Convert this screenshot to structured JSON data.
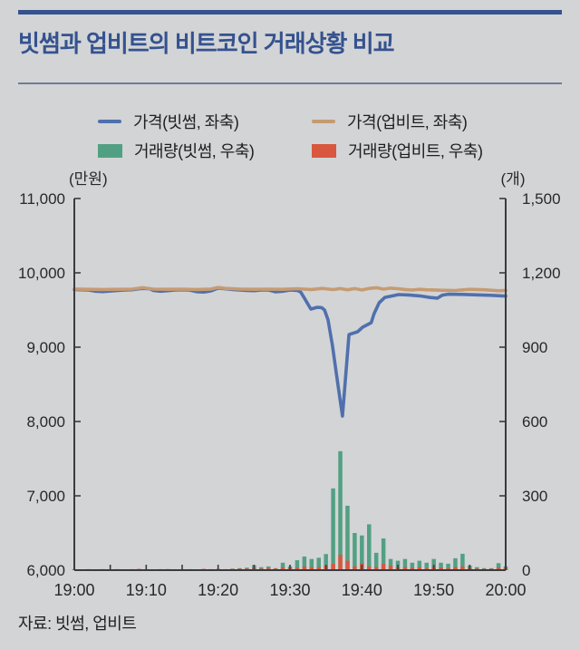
{
  "page": {
    "title": "빗썸과 업비트의 비트코인 거래상황 비교",
    "source": "자료: 빗썸, 업비트",
    "background_color": "#d2d4d6",
    "accent_color": "#35528f",
    "rule_color": "#6f7c99"
  },
  "chart_data": {
    "type": "mixed",
    "title": "빗썸과 업비트의 비트코인 거래상황 비교",
    "grid": false,
    "legend_position": "top",
    "x": {
      "range_minutes": [
        0,
        60
      ],
      "tick_labels": [
        "19:00",
        "19:10",
        "19:20",
        "19:30",
        "19:40",
        "19:50",
        "20:00"
      ],
      "minor_tick_every_min": 5
    },
    "left_axis": {
      "unit": "(만원)",
      "min": 6000,
      "max": 11000,
      "tick_values": [
        6000,
        7000,
        8000,
        9000,
        10000,
        11000
      ],
      "ticks": [
        "6,000",
        "7,000",
        "8,000",
        "9,000",
        "10,000",
        "11,000"
      ]
    },
    "right_axis": {
      "unit": "(개)",
      "min": 0,
      "max": 1500,
      "tick_values": [
        0,
        300,
        600,
        900,
        1200,
        1500
      ],
      "ticks": [
        "0",
        "300",
        "600",
        "900",
        "1,200",
        "1,500"
      ]
    },
    "series": [
      {
        "id": "bithumb-price",
        "name": "가격(빗썸, 좌축)",
        "type": "line",
        "axis": "left",
        "color": "#5070ad",
        "points": [
          [
            0,
            9775
          ],
          [
            1,
            9772
          ],
          [
            2,
            9768
          ],
          [
            3,
            9752
          ],
          [
            4,
            9748
          ],
          [
            5,
            9755
          ],
          [
            6,
            9762
          ],
          [
            7,
            9768
          ],
          [
            8,
            9772
          ],
          [
            9,
            9785
          ],
          [
            9.5,
            9790
          ],
          [
            10.5,
            9785
          ],
          [
            11,
            9762
          ],
          [
            12,
            9752
          ],
          [
            13,
            9760
          ],
          [
            14,
            9770
          ],
          [
            15,
            9772
          ],
          [
            16,
            9768
          ],
          [
            17,
            9746
          ],
          [
            18,
            9742
          ],
          [
            19,
            9756
          ],
          [
            20,
            9795
          ],
          [
            21,
            9785
          ],
          [
            22,
            9776
          ],
          [
            23,
            9770
          ],
          [
            24,
            9764
          ],
          [
            25,
            9760
          ],
          [
            26,
            9768
          ],
          [
            27,
            9770
          ],
          [
            28,
            9744
          ],
          [
            29,
            9752
          ],
          [
            30,
            9768
          ],
          [
            31,
            9764
          ],
          [
            31.5,
            9740
          ],
          [
            32,
            9660
          ],
          [
            32.9,
            9512
          ],
          [
            33.8,
            9537
          ],
          [
            34.4,
            9532
          ],
          [
            34.8,
            9500
          ],
          [
            35.3,
            9366
          ],
          [
            35.9,
            9024
          ],
          [
            36.6,
            8537
          ],
          [
            37.3,
            8073
          ],
          [
            38.2,
            9170
          ],
          [
            39.4,
            9207
          ],
          [
            40.1,
            9268
          ],
          [
            41.3,
            9329
          ],
          [
            41.7,
            9451
          ],
          [
            42.4,
            9597
          ],
          [
            43.2,
            9670
          ],
          [
            45.1,
            9707
          ],
          [
            46.5,
            9702
          ],
          [
            48,
            9690
          ],
          [
            49.5,
            9668
          ],
          [
            50.5,
            9660
          ],
          [
            51.2,
            9700
          ],
          [
            52,
            9712
          ],
          [
            54,
            9710
          ],
          [
            56,
            9704
          ],
          [
            58,
            9698
          ],
          [
            59.5,
            9690
          ],
          [
            60,
            9688
          ]
        ]
      },
      {
        "id": "upbit-price",
        "name": "가격(업비트, 좌축)",
        "type": "line",
        "axis": "left",
        "color": "#c69b72",
        "points": [
          [
            0,
            9782
          ],
          [
            2,
            9778
          ],
          [
            4,
            9775
          ],
          [
            6,
            9778
          ],
          [
            8,
            9780
          ],
          [
            9.5,
            9800
          ],
          [
            11,
            9780
          ],
          [
            13,
            9778
          ],
          [
            15,
            9780
          ],
          [
            17,
            9776
          ],
          [
            19,
            9782
          ],
          [
            20,
            9804
          ],
          [
            21,
            9790
          ],
          [
            23,
            9782
          ],
          [
            25,
            9778
          ],
          [
            27,
            9780
          ],
          [
            29,
            9778
          ],
          [
            31,
            9786
          ],
          [
            33,
            9776
          ],
          [
            34.5,
            9790
          ],
          [
            36,
            9774
          ],
          [
            37,
            9788
          ],
          [
            38,
            9772
          ],
          [
            39,
            9788
          ],
          [
            40,
            9770
          ],
          [
            41,
            9790
          ],
          [
            42,
            9800
          ],
          [
            43,
            9780
          ],
          [
            44,
            9794
          ],
          [
            45,
            9786
          ],
          [
            46,
            9776
          ],
          [
            47,
            9768
          ],
          [
            48,
            9778
          ],
          [
            49,
            9772
          ],
          [
            51,
            9766
          ],
          [
            53,
            9762
          ],
          [
            55,
            9778
          ],
          [
            57,
            9772
          ],
          [
            59,
            9758
          ],
          [
            60,
            9764
          ]
        ]
      },
      {
        "id": "bithumb-volume",
        "name": "거래량(빗썸, 우축)",
        "type": "bar",
        "axis": "right",
        "color": "#52a083",
        "values": [
          2,
          1,
          2,
          1,
          3,
          2,
          1,
          2,
          3,
          4,
          2,
          1,
          2,
          4,
          2,
          1,
          3,
          2,
          4,
          3,
          4,
          3,
          6,
          8,
          10,
          20,
          12,
          15,
          8,
          30,
          15,
          40,
          55,
          45,
          50,
          65,
          330,
          480,
          260,
          150,
          140,
          185,
          70,
          128,
          45,
          38,
          45,
          30,
          38,
          30,
          45,
          30,
          26,
          48,
          66,
          18,
          12,
          8,
          8,
          28,
          15
        ]
      },
      {
        "id": "upbit-volume",
        "name": "거래량(업비트, 우축)",
        "type": "bar",
        "axis": "right",
        "color": "#d8573e",
        "values": [
          4,
          3,
          4,
          3,
          4,
          3,
          4,
          3,
          4,
          5,
          4,
          3,
          4,
          4,
          3,
          4,
          4,
          3,
          5,
          4,
          5,
          4,
          5,
          6,
          6,
          8,
          6,
          8,
          6,
          12,
          8,
          10,
          15,
          12,
          12,
          18,
          25,
          62,
          38,
          15,
          28,
          15,
          12,
          25,
          18,
          10,
          12,
          10,
          12,
          8,
          14,
          10,
          8,
          12,
          15,
          8,
          6,
          5,
          6,
          10,
          8
        ]
      }
    ]
  }
}
